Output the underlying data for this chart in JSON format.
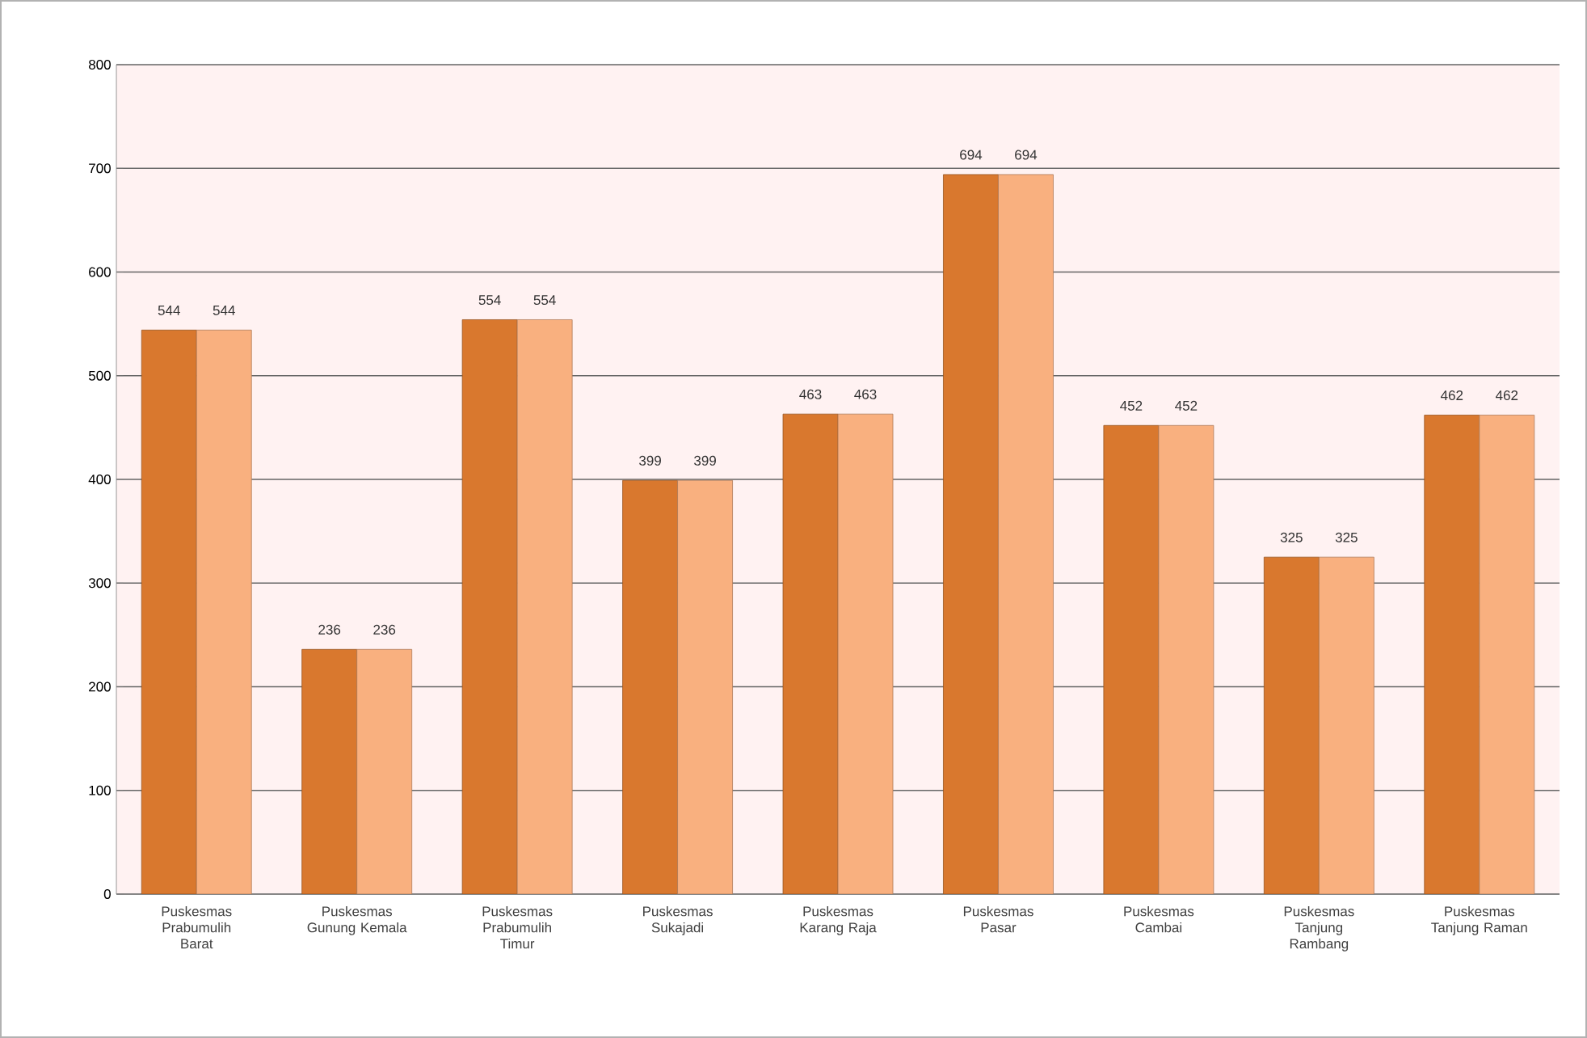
{
  "chart_data": {
    "type": "bar",
    "categories": [
      "Puskesmas Prabumulih Barat",
      "Puskesmas Gunung Kemala",
      "Puskesmas Prabumulih Timur",
      "Puskesmas Sukajadi",
      "Puskesmas Karang Raja",
      "Puskesmas Pasar",
      "Puskesmas Cambai",
      "Puskesmas Tanjung Rambang",
      "Puskesmas Tanjung Raman"
    ],
    "series": [
      {
        "color": "#d9782e",
        "values": [
          544,
          236,
          554,
          399,
          463,
          694,
          452,
          325,
          462
        ]
      },
      {
        "color": "#f9b07f",
        "values": [
          544,
          236,
          554,
          399,
          463,
          694,
          452,
          325,
          462
        ]
      }
    ],
    "ylim": [
      0,
      800
    ],
    "yticks": [
      0,
      100,
      200,
      300,
      400,
      500,
      600,
      700,
      800
    ],
    "grid": "y",
    "data_labels": true
  }
}
